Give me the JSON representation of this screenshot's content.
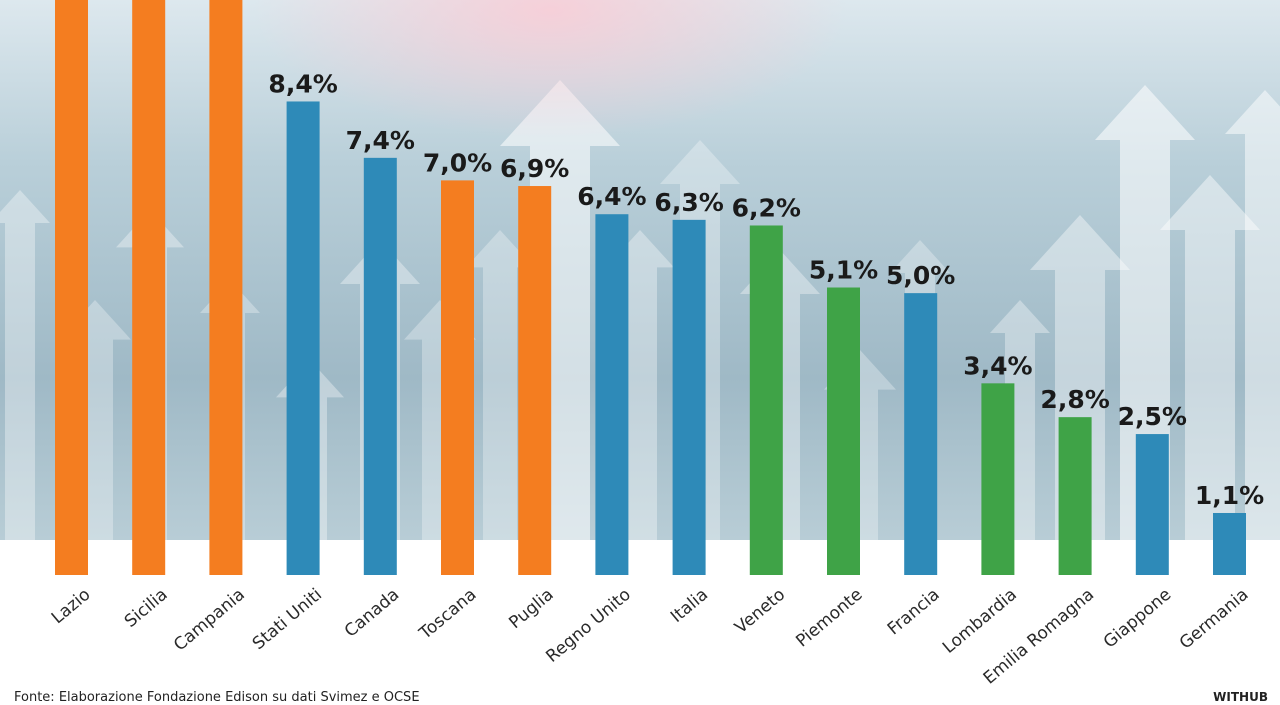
{
  "chart_data": {
    "type": "bar",
    "categories": [
      "Lazio",
      "Sicilia",
      "Campania",
      "Stati Uniti",
      "Canada",
      "Toscana",
      "Puglia",
      "Regno Unito",
      "Italia",
      "Veneto",
      "Piemonte",
      "Francia",
      "Lombardia",
      "Emilia Romagna",
      "Giappone",
      "Germania"
    ],
    "values": [
      null,
      null,
      null,
      8.4,
      7.4,
      7.0,
      6.9,
      6.4,
      6.3,
      6.2,
      5.1,
      5.0,
      3.4,
      2.8,
      2.5,
      1.1
    ],
    "value_labels": [
      "",
      "",
      "",
      "8,4%",
      "7,4%",
      "7,0%",
      "6,9%",
      "6,4%",
      "6,3%",
      "6,2%",
      "5,1%",
      "5,0%",
      "3,4%",
      "2,8%",
      "2,5%",
      "1,1%"
    ],
    "bar_colors": [
      "#f47d20",
      "#f47d20",
      "#f47d20",
      "#2e8ab8",
      "#2e8ab8",
      "#f47d20",
      "#f47d20",
      "#2e8ab8",
      "#2e8ab8",
      "#3fa347",
      "#3fa347",
      "#2e8ab8",
      "#3fa347",
      "#3fa347",
      "#2e8ab8",
      "#2e8ab8"
    ],
    "ylim": [
      0,
      10.2
    ],
    "grid": false,
    "legend": "none"
  },
  "footer": {
    "source": "Fonte: Elaborazione Fondazione Edison su dati Svimez e OCSE",
    "brand": "WITHUB"
  },
  "colors": {
    "orange": "#f47d20",
    "blue": "#2e8ab8",
    "green": "#3fa347"
  },
  "icons": [
    "up-arrow-background"
  ]
}
